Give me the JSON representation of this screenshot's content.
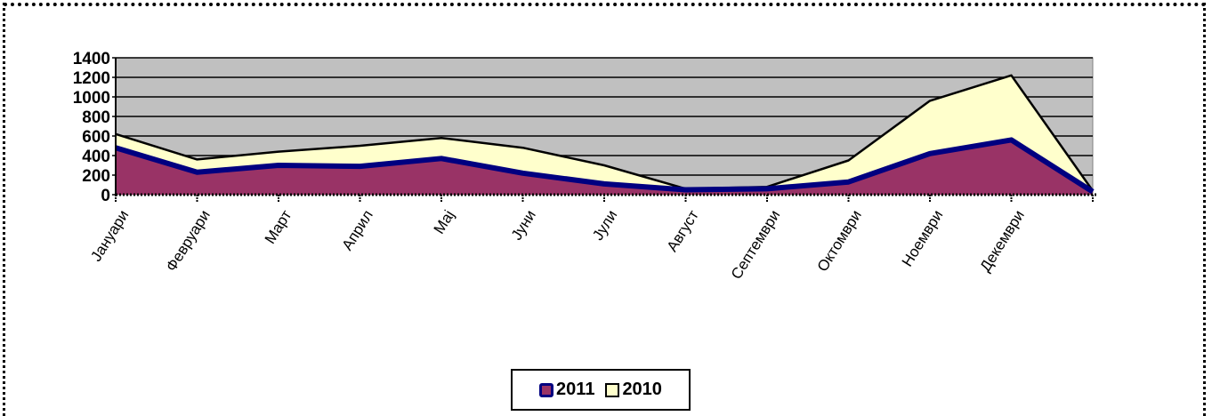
{
  "chart_data": {
    "type": "area",
    "title": "",
    "xlabel": "",
    "ylabel": "",
    "categories": [
      "Јануари",
      "Февруари",
      "Март",
      "Април",
      "Мај",
      "Јуни",
      "Јули",
      "Август",
      "Септември",
      "Октомври",
      "Ноември",
      "Декември",
      ""
    ],
    "ylim": [
      0,
      1400
    ],
    "yticks": [
      0,
      200,
      400,
      600,
      800,
      1000,
      1200,
      1400
    ],
    "grid": true,
    "legend_position": "bottom",
    "series": [
      {
        "name": "2011",
        "values": [
          480,
          230,
          300,
          290,
          370,
          220,
          110,
          50,
          60,
          130,
          420,
          560,
          30
        ],
        "color": "#993366",
        "line_color": "#000080"
      },
      {
        "name": "2010",
        "values": [
          620,
          360,
          440,
          500,
          580,
          480,
          300,
          60,
          80,
          350,
          960,
          1220,
          40
        ],
        "color": "#ffffcc",
        "line_color": "#000000"
      }
    ],
    "plot_background": "#c0c0c0"
  }
}
